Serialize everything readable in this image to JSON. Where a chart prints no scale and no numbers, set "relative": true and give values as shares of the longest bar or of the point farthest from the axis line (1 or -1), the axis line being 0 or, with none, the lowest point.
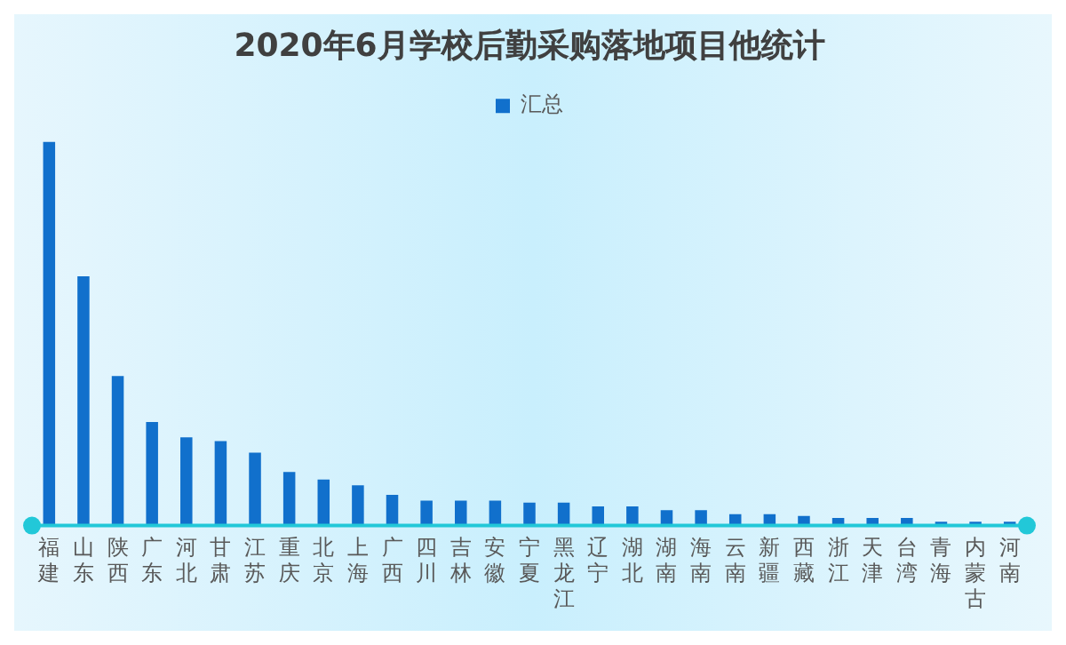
{
  "chart_data": {
    "type": "bar",
    "title": "2020年6月学校后勤采购落地项目他统计",
    "relative": true,
    "categories": [
      "福建",
      "山东",
      "陕西",
      "广东",
      "河北",
      "甘肃",
      "江苏",
      "重庆",
      "北京",
      "上海",
      "广西",
      "四川",
      "吉林",
      "安徽",
      "宁夏",
      "黑龙江",
      "辽宁",
      "湖北",
      "湖南",
      "海南",
      "云南",
      "新疆",
      "西藏",
      "浙江",
      "天津",
      "台湾",
      "青海",
      "内蒙古",
      "河南"
    ],
    "series": [
      {
        "name": "汇总",
        "color": "#1170cc",
        "values": [
          1.0,
          0.65,
          0.39,
          0.27,
          0.23,
          0.22,
          0.19,
          0.14,
          0.12,
          0.105,
          0.08,
          0.065,
          0.065,
          0.065,
          0.06,
          0.06,
          0.05,
          0.05,
          0.04,
          0.04,
          0.03,
          0.03,
          0.025,
          0.02,
          0.02,
          0.02,
          0.01,
          0.01,
          0.01
        ]
      }
    ],
    "legend": "top",
    "grid": false
  }
}
